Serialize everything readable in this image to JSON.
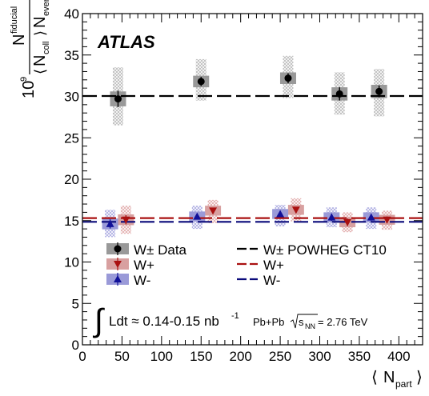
{
  "chart_data": {
    "type": "scatter",
    "brand": "ATLAS",
    "ylabel": {
      "prefix": "10",
      "prefix_exp": "9",
      "num": "N",
      "num_sup": "fiducial",
      "den_n1": "N",
      "den_n1_sub": "coll",
      "den_n2": "N",
      "den_n2_sub": "events"
    },
    "xlabel": {
      "main": "N",
      "sub": "part"
    },
    "xlim": [
      0,
      430
    ],
    "ylim": [
      0,
      40
    ],
    "xticks": [
      0,
      50,
      100,
      150,
      200,
      250,
      300,
      350,
      400
    ],
    "yticks": [
      0,
      5,
      10,
      15,
      20,
      25,
      30,
      35,
      40
    ],
    "reference_lines": [
      {
        "name": "W± POWHEG CT10",
        "y": 30.05,
        "color": "#000000"
      },
      {
        "name": "W+",
        "y": 15.3,
        "color": "#aa1111"
      },
      {
        "name": "W-",
        "y": 14.85,
        "color": "#0a0a7a"
      }
    ],
    "series": [
      {
        "name": "W± Data",
        "marker": "circle",
        "color": "#000000",
        "sys_fill": "#999999",
        "hatch_color": "#c8c8c8",
        "points": [
          {
            "x": 45,
            "y": 29.7,
            "err": 1.0,
            "sys": 0.9,
            "band": [
              26.5,
              33.5
            ]
          },
          {
            "x": 150,
            "y": 31.8,
            "err": 0.55,
            "sys": 0.7,
            "band": [
              29.5,
              34.5
            ]
          },
          {
            "x": 260,
            "y": 32.2,
            "err": 0.6,
            "sys": 0.7,
            "band": [
              29.8,
              34.9
            ]
          },
          {
            "x": 325,
            "y": 30.3,
            "err": 0.8,
            "sys": 0.8,
            "band": [
              27.8,
              32.9
            ]
          },
          {
            "x": 375,
            "y": 30.6,
            "err": 0.7,
            "sys": 0.8,
            "band": [
              27.6,
              33.3
            ]
          }
        ]
      },
      {
        "name": "W+",
        "marker": "triangle-down",
        "color": "#aa1111",
        "sys_fill": "#d8a0a0",
        "hatch_color": "#e8b4b4",
        "points": [
          {
            "x": 55,
            "y": 15.1,
            "err": 0.55,
            "sys": 0.65,
            "band": [
              13.4,
              16.8
            ]
          },
          {
            "x": 165,
            "y": 16.2,
            "err": 0.35,
            "sys": 0.6,
            "band": [
              14.7,
              17.5
            ]
          },
          {
            "x": 270,
            "y": 16.3,
            "err": 0.35,
            "sys": 0.6,
            "band": [
              14.9,
              17.7
            ]
          },
          {
            "x": 335,
            "y": 14.8,
            "err": 0.45,
            "sys": 0.6,
            "band": [
              13.6,
              16.0
            ]
          },
          {
            "x": 385,
            "y": 15.1,
            "err": 0.4,
            "sys": 0.6,
            "band": [
              13.9,
              16.2
            ]
          }
        ]
      },
      {
        "name": "W-",
        "marker": "triangle-up",
        "color": "#111199",
        "sys_fill": "#9a9ad8",
        "hatch_color": "#b4b4e8",
        "points": [
          {
            "x": 35,
            "y": 14.6,
            "err": 0.55,
            "sys": 0.65,
            "band": [
              13.0,
              16.3
            ]
          },
          {
            "x": 145,
            "y": 15.5,
            "err": 0.35,
            "sys": 0.6,
            "band": [
              14.0,
              16.8
            ]
          },
          {
            "x": 250,
            "y": 15.8,
            "err": 0.35,
            "sys": 0.6,
            "band": [
              14.3,
              16.9
            ]
          },
          {
            "x": 315,
            "y": 15.4,
            "err": 0.45,
            "sys": 0.6,
            "band": [
              14.2,
              16.6
            ]
          },
          {
            "x": 365,
            "y": 15.4,
            "err": 0.4,
            "sys": 0.6,
            "band": [
              14.0,
              16.6
            ]
          }
        ]
      }
    ],
    "legend": {
      "placement": "bottom",
      "data_entries": [
        {
          "label": "W± Data",
          "series": 0
        },
        {
          "label": "W+",
          "series": 1
        },
        {
          "label": "W-",
          "series": 2
        }
      ],
      "theory_entries": [
        {
          "label": "W± POWHEG CT10",
          "line": 0
        },
        {
          "label": "W+",
          "line": 1
        },
        {
          "label": "W-",
          "line": 2
        }
      ]
    },
    "annotation": {
      "lumi": "Ldt ≈ 0.14-0.15 nb",
      "lumi_exp": "-1",
      "collision": "Pb+Pb",
      "energy_pre": "s",
      "energy_sub": "NN",
      "energy_post": " = 2.76 TeV"
    }
  }
}
